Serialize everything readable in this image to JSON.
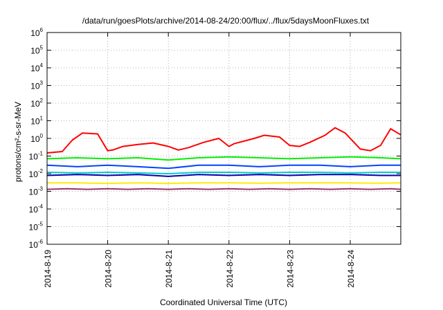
{
  "chart_data": {
    "type": "line",
    "title": "/data/run/goesPlots/archive/2014-08-24/20:00/flux/../flux/5daysMoonFluxes.txt",
    "xlabel": "Coordinated Universal Time (UTC)",
    "ylabel": "protons/cm²-s-sr-MeV",
    "y_scale": "log",
    "ylim": [
      1e-06,
      1000000.0
    ],
    "y_ticks": [
      {
        "base": "10",
        "exp": "6",
        "value": 1000000.0
      },
      {
        "base": "10",
        "exp": "5",
        "value": 100000.0
      },
      {
        "base": "10",
        "exp": "4",
        "value": 10000.0
      },
      {
        "base": "10",
        "exp": "3",
        "value": 1000.0
      },
      {
        "base": "10",
        "exp": "2",
        "value": 100.0
      },
      {
        "base": "10",
        "exp": "1",
        "value": 10.0
      },
      {
        "base": "10",
        "exp": "0",
        "value": 1
      },
      {
        "base": "10",
        "exp": "-1",
        "value": 0.1
      },
      {
        "base": "10",
        "exp": "-2",
        "value": 0.01
      },
      {
        "base": "10",
        "exp": "-3",
        "value": 0.001
      },
      {
        "base": "10",
        "exp": "-4",
        "value": 0.0001
      },
      {
        "base": "10",
        "exp": "-5",
        "value": 1e-05
      },
      {
        "base": "10",
        "exp": "-6",
        "value": 1e-06
      }
    ],
    "xlim": [
      "2014-08-19T00:00",
      "2014-08-24T20:00"
    ],
    "x_ticks": [
      {
        "label": "2014-8-19",
        "value": "2014-08-19T00:00"
      },
      {
        "label": "2014-8-20",
        "value": "2014-08-20T00:00"
      },
      {
        "label": "2014-8-21",
        "value": "2014-08-21T00:00"
      },
      {
        "label": "2014-8-22",
        "value": "2014-08-22T00:00"
      },
      {
        "label": "2014-8-23",
        "value": "2014-08-23T00:00"
      },
      {
        "label": "2014-8-24",
        "value": "2014-08-24T00:00"
      }
    ],
    "grid": true,
    "series": [
      {
        "color": "#ff0000",
        "x": [
          "2014-08-19T00:00",
          "2014-08-19T06:00",
          "2014-08-19T10:00",
          "2014-08-19T14:00",
          "2014-08-19T20:00",
          "2014-08-20T00:00",
          "2014-08-20T02:00",
          "2014-08-20T06:00",
          "2014-08-20T12:00",
          "2014-08-20T18:00",
          "2014-08-21T00:00",
          "2014-08-21T04:00",
          "2014-08-21T08:00",
          "2014-08-21T14:00",
          "2014-08-21T20:00",
          "2014-08-22T00:00",
          "2014-08-22T02:00",
          "2014-08-22T06:00",
          "2014-08-22T10:00",
          "2014-08-22T14:00",
          "2014-08-22T20:00",
          "2014-08-23T00:00",
          "2014-08-23T04:00",
          "2014-08-23T08:00",
          "2014-08-23T14:00",
          "2014-08-23T18:00",
          "2014-08-23T22:00",
          "2014-08-24T04:00",
          "2014-08-24T08:00",
          "2014-08-24T12:00",
          "2014-08-24T16:00",
          "2014-08-24T20:00"
        ],
        "y": [
          0.15,
          0.18,
          0.8,
          2.0,
          1.8,
          0.2,
          0.22,
          0.35,
          0.45,
          0.55,
          0.35,
          0.22,
          0.3,
          0.6,
          1.0,
          0.35,
          0.5,
          0.7,
          1.0,
          1.5,
          1.2,
          0.4,
          0.35,
          0.6,
          1.5,
          4.0,
          2.0,
          0.25,
          0.2,
          0.4,
          3.5,
          1.6
        ]
      },
      {
        "color": "#00ee00",
        "x": [
          "2014-08-19T00:00",
          "2014-08-19T12:00",
          "2014-08-20T00:00",
          "2014-08-20T12:00",
          "2014-08-21T00:00",
          "2014-08-21T12:00",
          "2014-08-22T00:00",
          "2014-08-22T12:00",
          "2014-08-23T00:00",
          "2014-08-23T12:00",
          "2014-08-24T00:00",
          "2014-08-24T12:00",
          "2014-08-24T20:00"
        ],
        "y": [
          0.07,
          0.08,
          0.07,
          0.08,
          0.06,
          0.08,
          0.09,
          0.08,
          0.07,
          0.08,
          0.09,
          0.08,
          0.07
        ]
      },
      {
        "color": "#0044ff",
        "x": [
          "2014-08-19T00:00",
          "2014-08-19T12:00",
          "2014-08-20T00:00",
          "2014-08-20T12:00",
          "2014-08-21T00:00",
          "2014-08-21T12:00",
          "2014-08-22T00:00",
          "2014-08-22T12:00",
          "2014-08-23T00:00",
          "2014-08-23T12:00",
          "2014-08-24T00:00",
          "2014-08-24T12:00",
          "2014-08-24T20:00"
        ],
        "y": [
          0.03,
          0.025,
          0.03,
          0.025,
          0.02,
          0.03,
          0.03,
          0.025,
          0.03,
          0.03,
          0.025,
          0.03,
          0.03
        ]
      },
      {
        "color": "#00cccc",
        "x": [
          "2014-08-19T00:00",
          "2014-08-19T12:00",
          "2014-08-20T00:00",
          "2014-08-20T12:00",
          "2014-08-21T00:00",
          "2014-08-21T12:00",
          "2014-08-22T00:00",
          "2014-08-22T12:00",
          "2014-08-23T00:00",
          "2014-08-23T12:00",
          "2014-08-24T00:00",
          "2014-08-24T12:00",
          "2014-08-24T20:00"
        ],
        "y": [
          0.012,
          0.011,
          0.012,
          0.011,
          0.01,
          0.012,
          0.012,
          0.011,
          0.012,
          0.012,
          0.011,
          0.012,
          0.012
        ]
      },
      {
        "color": "#0000aa",
        "x": [
          "2014-08-19T00:00",
          "2014-08-19T12:00",
          "2014-08-20T00:00",
          "2014-08-20T12:00",
          "2014-08-21T00:00",
          "2014-08-21T12:00",
          "2014-08-22T00:00",
          "2014-08-22T12:00",
          "2014-08-23T00:00",
          "2014-08-23T12:00",
          "2014-08-24T00:00",
          "2014-08-24T12:00",
          "2014-08-24T20:00"
        ],
        "y": [
          0.008,
          0.009,
          0.008,
          0.009,
          0.007,
          0.009,
          0.008,
          0.009,
          0.008,
          0.009,
          0.009,
          0.008,
          0.008
        ]
      },
      {
        "color": "#ffee00",
        "x": [
          "2014-08-19T00:00",
          "2014-08-19T12:00",
          "2014-08-20T00:00",
          "2014-08-20T12:00",
          "2014-08-21T00:00",
          "2014-08-21T12:00",
          "2014-08-22T00:00",
          "2014-08-22T12:00",
          "2014-08-23T00:00",
          "2014-08-23T12:00",
          "2014-08-24T00:00",
          "2014-08-24T12:00",
          "2014-08-24T20:00"
        ],
        "y": [
          0.003,
          0.003,
          0.0028,
          0.003,
          0.0028,
          0.003,
          0.003,
          0.0029,
          0.003,
          0.003,
          0.003,
          0.0029,
          0.003
        ]
      },
      {
        "color": "#993366",
        "x": [
          "2014-08-19T00:00",
          "2014-08-19T08:00",
          "2014-08-19T16:00",
          "2014-08-20T00:00",
          "2014-08-20T08:00",
          "2014-08-20T16:00",
          "2014-08-21T00:00",
          "2014-08-21T08:00",
          "2014-08-21T16:00",
          "2014-08-22T00:00",
          "2014-08-22T08:00",
          "2014-08-22T16:00",
          "2014-08-23T00:00",
          "2014-08-23T08:00",
          "2014-08-23T16:00",
          "2014-08-24T00:00",
          "2014-08-24T08:00",
          "2014-08-24T16:00",
          "2014-08-24T20:00"
        ],
        "y": [
          0.0013,
          0.0014,
          0.0013,
          0.0014,
          0.0013,
          0.0014,
          0.0013,
          0.0014,
          0.0013,
          0.0014,
          0.0013,
          0.0014,
          0.0013,
          0.0014,
          0.0013,
          0.0014,
          0.0013,
          0.0014,
          0.0013
        ]
      }
    ]
  }
}
